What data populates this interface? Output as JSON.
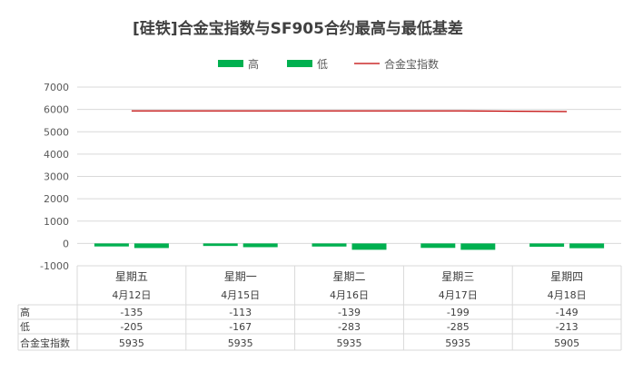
{
  "chart_data": {
    "type": "bar",
    "title": "[硅铁]合金宝指数与SF905合约最高与最低基差",
    "categories": [
      "星期五",
      "星期一",
      "星期二",
      "星期三",
      "星期四"
    ],
    "dates": [
      "4月12日",
      "4月15日",
      "4月16日",
      "4月17日",
      "4月18日"
    ],
    "series": [
      {
        "name": "高",
        "kind": "bar",
        "color": "#00B050",
        "values": [
          -135,
          -113,
          -139,
          -199,
          -149
        ]
      },
      {
        "name": "低",
        "kind": "bar",
        "color": "#00B050",
        "values": [
          -205,
          -167,
          -283,
          -285,
          -213
        ]
      },
      {
        "name": "合金宝指数",
        "kind": "line",
        "color": "#C00000",
        "values": [
          5935,
          5935,
          5935,
          5935,
          5905
        ]
      }
    ],
    "ylim": [
      -1000,
      7000
    ],
    "yticks": [
      7000,
      6000,
      5000,
      4000,
      3000,
      2000,
      1000,
      0,
      -1000
    ],
    "grid": true,
    "legend": "top",
    "data_table": true
  }
}
